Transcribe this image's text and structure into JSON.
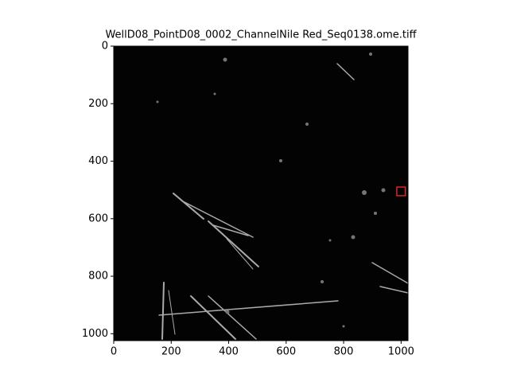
{
  "chart_data": {
    "type": "image",
    "title": "WellD08_PointD08_0002_ChannelNile Red_Seq0138.ome.tiff",
    "xlim": [
      0,
      1024
    ],
    "ylim": [
      1024,
      0
    ],
    "xticks": [
      0,
      200,
      400,
      600,
      800,
      1000
    ],
    "yticks": [
      0,
      200,
      400,
      600,
      800,
      1000
    ],
    "highlight": {
      "x": 1000,
      "y": 505,
      "size": 30,
      "color": "#d62728"
    }
  }
}
